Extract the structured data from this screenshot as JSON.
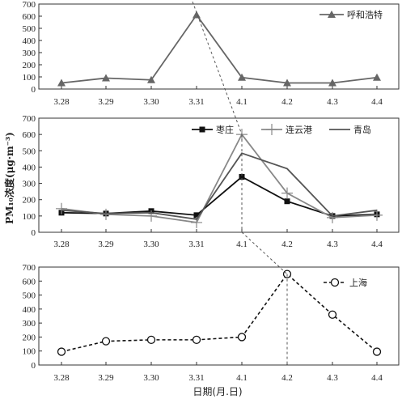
{
  "chart_data": [
    {
      "type": "line",
      "categories": [
        "3.28",
        "3.29",
        "3.30",
        "3.31",
        "4.1",
        "4.2",
        "4.3",
        "4.4"
      ],
      "ylim": [
        0,
        700
      ],
      "yticks": [
        0,
        100,
        200,
        300,
        400,
        500,
        600,
        700
      ],
      "legend_position": "top-right",
      "series": [
        {
          "name": "呼和浩特",
          "marker": "triangle",
          "line": "solid",
          "color": "#666666",
          "values": [
            50,
            90,
            75,
            610,
            95,
            50,
            50,
            95
          ]
        }
      ]
    },
    {
      "type": "line",
      "categories": [
        "3.28",
        "3.29",
        "3.30",
        "3.31",
        "4.1",
        "4.2",
        "4.3",
        "4.4"
      ],
      "ylim": [
        0,
        700
      ],
      "yticks": [
        0,
        100,
        200,
        300,
        400,
        500,
        600,
        700
      ],
      "legend_position": "top-right",
      "series": [
        {
          "name": "枣庄",
          "marker": "square",
          "line": "solid",
          "color": "#111111",
          "values": [
            120,
            115,
            130,
            105,
            340,
            190,
            100,
            110
          ]
        },
        {
          "name": "连云港",
          "marker": "plus",
          "line": "solid",
          "color": "#888888",
          "values": [
            145,
            110,
            100,
            60,
            600,
            240,
            90,
            105
          ]
        },
        {
          "name": "青岛",
          "marker": "none",
          "line": "solid",
          "color": "#555555",
          "values": [
            135,
            115,
            120,
            80,
            485,
            390,
            100,
            135
          ]
        }
      ]
    },
    {
      "type": "line",
      "categories": [
        "3.28",
        "3.29",
        "3.30",
        "3.31",
        "4.1",
        "4.2",
        "4.3",
        "4.4"
      ],
      "ylim": [
        0,
        700
      ],
      "yticks": [
        0,
        100,
        200,
        300,
        400,
        500,
        600,
        700
      ],
      "legend_position": "top-right",
      "series": [
        {
          "name": "上海",
          "marker": "circle",
          "line": "dashed",
          "color": "#111111",
          "values": [
            95,
            170,
            180,
            180,
            200,
            650,
            360,
            95
          ]
        }
      ]
    }
  ],
  "ylabel": "PM₁₀浓度(μg·m⁻³)",
  "xlabel": "日期(月.日)"
}
